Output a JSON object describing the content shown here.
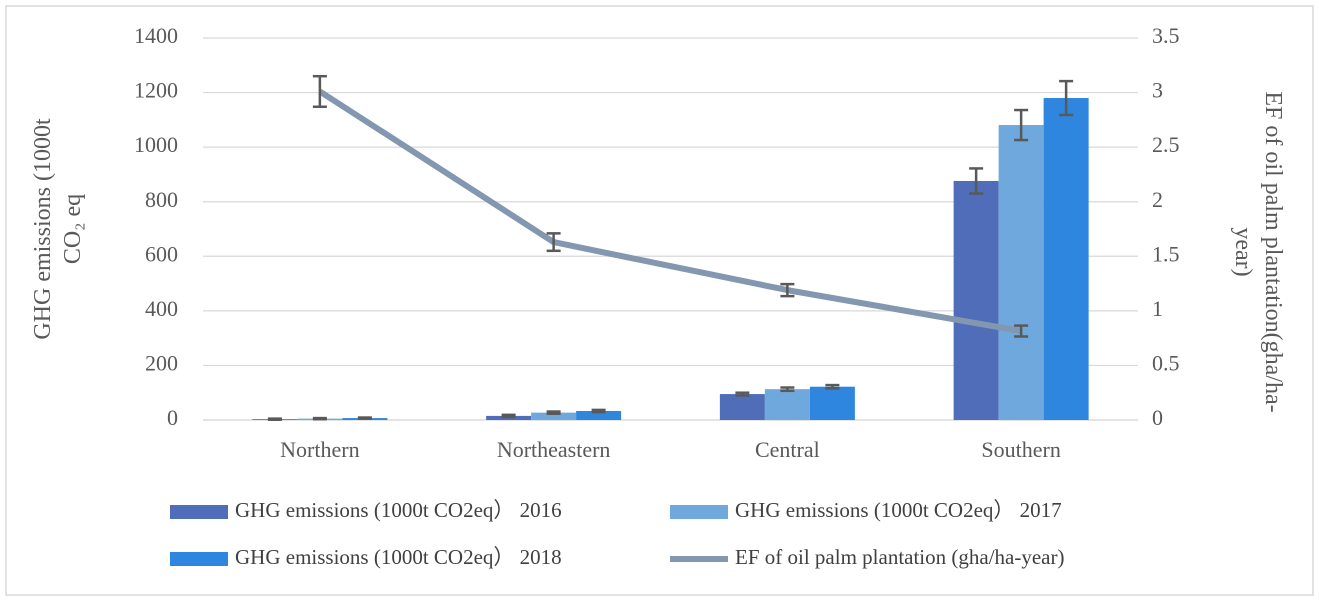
{
  "chart_data": {
    "type": "bar",
    "y_label": [
      "GHG emissions (1000t",
      "CO₂ eq"
    ],
    "y2_label": [
      "EF of oil palm plantation(gha/ha-",
      "year)"
    ],
    "categories": [
      "Northern",
      "Northeastern",
      "Central",
      "Southern"
    ],
    "ylim": [
      0,
      1400
    ],
    "yticks": [
      0,
      200,
      400,
      600,
      800,
      1000,
      1200,
      1400
    ],
    "y2lim": [
      0,
      3.5
    ],
    "y2ticks": [
      0,
      0.5,
      1,
      1.5,
      2,
      2.5,
      3,
      3.5
    ],
    "grid": true,
    "legend": "bottom",
    "series": [
      {
        "name": "GHG emissions (1000t CO2eq） 2016",
        "color": "#4f6db8",
        "values": [
          3,
          15,
          95,
          876
        ],
        "errors": [
          2,
          4,
          5,
          46
        ]
      },
      {
        "name": "GHG emissions (1000t CO2eq） 2017",
        "color": "#6fa8dc",
        "values": [
          5,
          27,
          113,
          1081
        ],
        "errors": [
          2,
          4,
          6,
          55
        ]
      },
      {
        "name": "GHG emissions (1000t CO2eq） 2018",
        "color": "#2e86de",
        "values": [
          7,
          33,
          122,
          1180
        ],
        "errors": [
          2,
          4,
          6,
          62
        ]
      },
      {
        "name": "EF of oil palm plantation (gha/ha-year)",
        "color": "#8497b0",
        "type": "line",
        "axis": "y2",
        "values": [
          3.01,
          1.63,
          1.19,
          0.815
        ],
        "errors": [
          0.14,
          0.08,
          0.055,
          0.05
        ]
      }
    ]
  }
}
